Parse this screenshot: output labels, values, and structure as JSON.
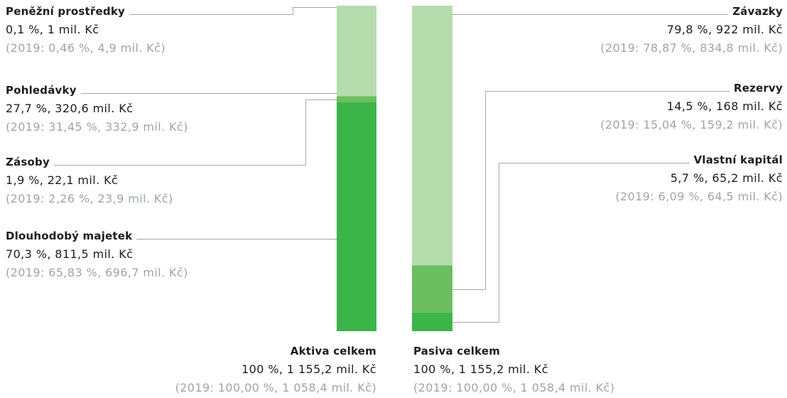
{
  "colors": {
    "text": "#1d1d1b",
    "muted": "#9ba6ac",
    "leader_line": "#a7a7a7"
  },
  "chart_data": {
    "type": "bar",
    "stacked": true,
    "bars": [
      {
        "name": "Aktiva celkem",
        "total_pct": 100,
        "total_amount": 1155.2,
        "total_text": "100 %, 1 155,2 mil. Kč",
        "prior_pct": 100.0,
        "prior_amount": 1058.4,
        "prior_text": "(2019: 100,00 %, 1 058,4 mil. Kč)",
        "segments": [
          {
            "name": "Peněžní prostředky",
            "pct": 0.1,
            "amount": 1,
            "value_text": "0,1 %, 1 mil. Kč",
            "prior_pct": 0.46,
            "prior_amount": 4.9,
            "prior_text": "(2019: 0,46 %, 4,9 mil. Kč)",
            "color": "#b4dcad"
          },
          {
            "name": "Pohledávky",
            "pct": 27.7,
            "amount": 320.6,
            "value_text": "27,7 %, 320,6 mil. Kč",
            "prior_pct": 31.45,
            "prior_amount": 332.9,
            "prior_text": "(2019: 31,45 %, 332,9 mil. Kč)",
            "color": "#b4dcad"
          },
          {
            "name": "Zásoby",
            "pct": 1.9,
            "amount": 22.1,
            "value_text": "1,9 %, 22,1 mil. Kč",
            "prior_pct": 2.26,
            "prior_amount": 23.9,
            "prior_text": "(2019: 2,26 %, 23,9 mil. Kč)",
            "color": "#6bbf60"
          },
          {
            "name": "Dlouhodobý majetek",
            "pct": 70.3,
            "amount": 811.5,
            "value_text": "70,3 %, 811,5 mil. Kč",
            "prior_pct": 65.83,
            "prior_amount": 696.7,
            "prior_text": "(2019: 65,83 %, 696,7 mil. Kč)",
            "color": "#3bb54a"
          }
        ]
      },
      {
        "name": "Pasiva celkem",
        "total_pct": 100,
        "total_amount": 1155.2,
        "total_text": "100 %, 1 155,2 mil. Kč",
        "prior_pct": 100.0,
        "prior_amount": 1058.4,
        "prior_text": "(2019: 100,00 %, 1 058,4 mil. Kč)",
        "segments": [
          {
            "name": "Závazky",
            "pct": 79.8,
            "amount": 922,
            "value_text": "79,8 %, 922 mil. Kč",
            "prior_pct": 78.87,
            "prior_amount": 834.8,
            "prior_text": "(2019: 78,87 %, 834,8 mil. Kč)",
            "color": "#b4dcad"
          },
          {
            "name": "Rezervy",
            "pct": 14.5,
            "amount": 168,
            "value_text": "14,5 %, 168 mil. Kč",
            "prior_pct": 15.04,
            "prior_amount": 159.2,
            "prior_text": "(2019: 15,04 %, 159,2 mil. Kč)",
            "color": "#6bbf60"
          },
          {
            "name": "Vlastní kapitál",
            "pct": 5.7,
            "amount": 65.2,
            "value_text": "5,7 %, 65,2 mil. Kč",
            "prior_pct": 6.09,
            "prior_amount": 64.5,
            "prior_text": "(2019: 6,09 %, 64,5 mil. Kč)",
            "color": "#3bb54a"
          }
        ]
      }
    ]
  }
}
